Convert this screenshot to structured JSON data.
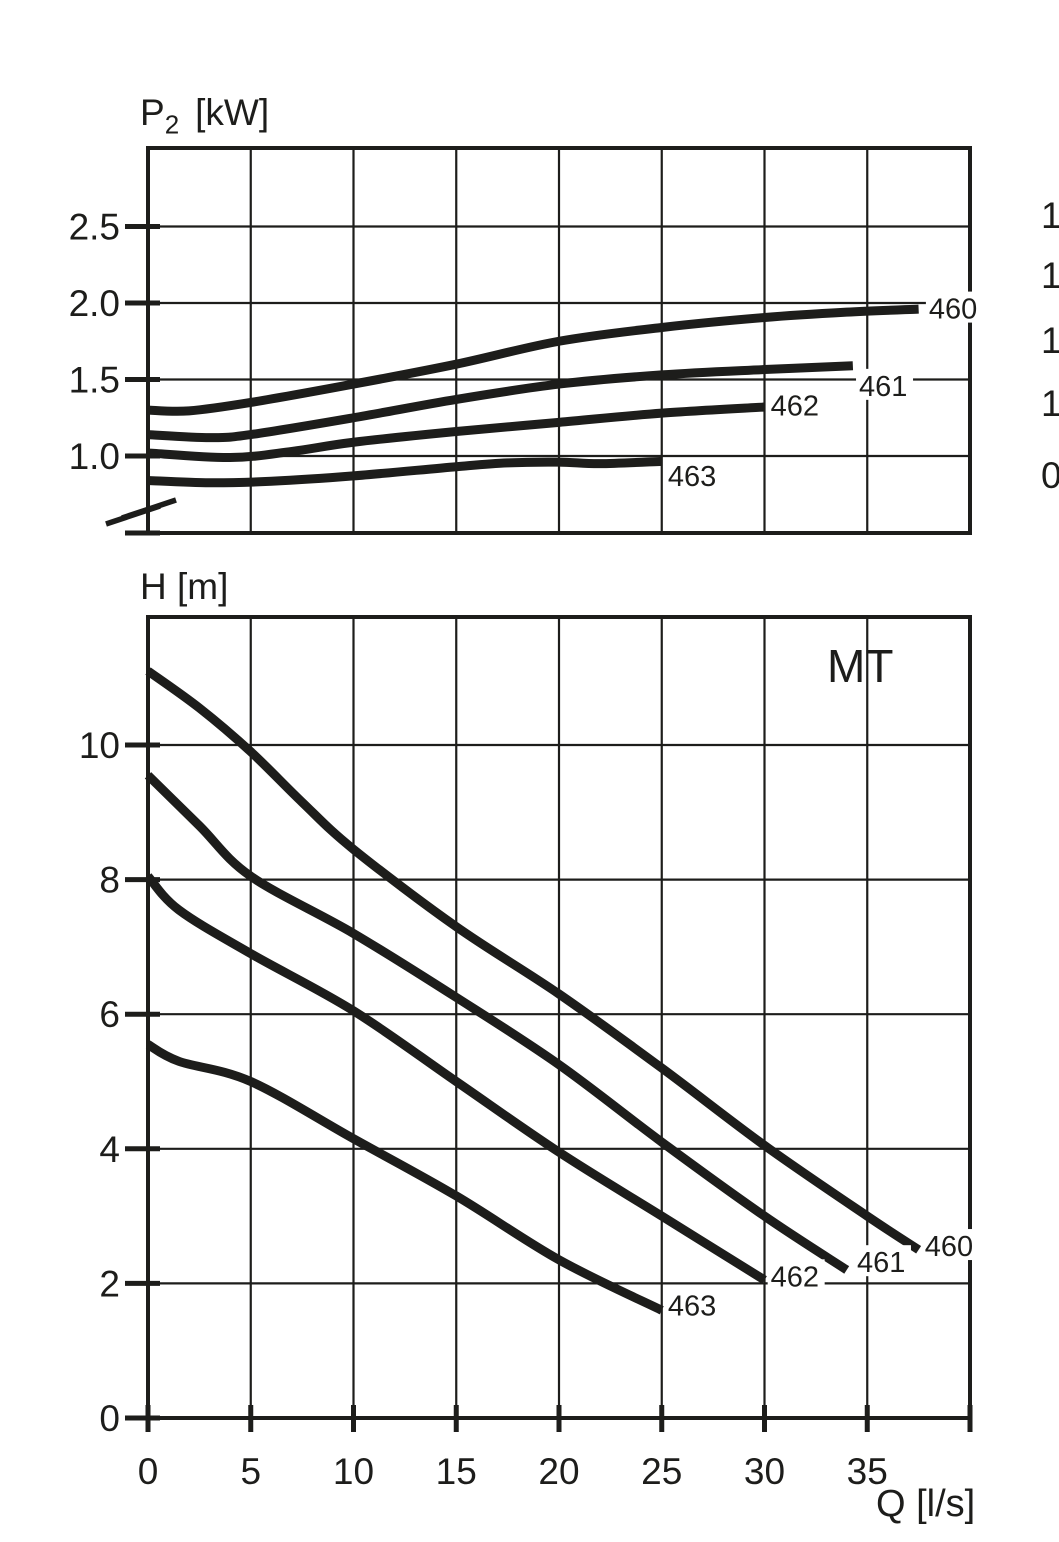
{
  "figure": {
    "background": "#ffffff",
    "ink": "#1d1d1b",
    "family_label": "MT"
  },
  "chart_data": [
    {
      "type": "line",
      "role": "shaft-power-vs-flow",
      "ylabel": "P2 [kW]",
      "ylabel_main": "P",
      "ylabel_sub": "2",
      "ylabel_unit": "[kW]",
      "xlabel": "",
      "x_range": [
        0,
        40
      ],
      "x_gridline_step": 5,
      "y_range_visible": [
        0.5,
        3.0
      ],
      "y_axis_break_below": true,
      "grid": true,
      "y_ticks": [
        1.0,
        1.5,
        2.0,
        2.5
      ],
      "y_tick_labels": [
        "1.0",
        "1.5",
        "2.0",
        "2.5"
      ],
      "x_tick_labels": [],
      "series": [
        {
          "name": "460",
          "label": "460",
          "label_pos": [
            38.0,
            1.97
          ],
          "points": [
            [
              0,
              1.3
            ],
            [
              2,
              1.295
            ],
            [
              5,
              1.35
            ],
            [
              10,
              1.47
            ],
            [
              15,
              1.6
            ],
            [
              20,
              1.75
            ],
            [
              25,
              1.84
            ],
            [
              30,
              1.905
            ],
            [
              34,
              1.94
            ],
            [
              37.5,
              1.96
            ]
          ]
        },
        {
          "name": "461",
          "label": "461",
          "label_pos": [
            34.6,
            1.465
          ],
          "points": [
            [
              0,
              1.14
            ],
            [
              3,
              1.12
            ],
            [
              5,
              1.14
            ],
            [
              10,
              1.25
            ],
            [
              15,
              1.37
            ],
            [
              20,
              1.47
            ],
            [
              25,
              1.53
            ],
            [
              30,
              1.565
            ],
            [
              34.3,
              1.59
            ]
          ]
        },
        {
          "name": "462",
          "label": "462",
          "label_pos": [
            30.3,
            1.335
          ],
          "points": [
            [
              0,
              1.02
            ],
            [
              4,
              0.99
            ],
            [
              7,
              1.03
            ],
            [
              10,
              1.09
            ],
            [
              15,
              1.16
            ],
            [
              20,
              1.22
            ],
            [
              25,
              1.28
            ],
            [
              30,
              1.32
            ]
          ]
        },
        {
          "name": "463",
          "label": "463",
          "label_pos": [
            25.3,
            0.875
          ],
          "points": [
            [
              0,
              0.84
            ],
            [
              3,
              0.825
            ],
            [
              6,
              0.835
            ],
            [
              10,
              0.87
            ],
            [
              15,
              0.93
            ],
            [
              17.5,
              0.955
            ],
            [
              20,
              0.96
            ],
            [
              22,
              0.95
            ],
            [
              25,
              0.965
            ]
          ]
        }
      ]
    },
    {
      "type": "line",
      "role": "head-vs-flow",
      "ylabel": "H [m]",
      "xlabel": "Q [l/s]",
      "annotation": "MT",
      "x_range": [
        0,
        40
      ],
      "x_gridline_step": 5,
      "y_range": [
        0,
        12
      ],
      "grid": true,
      "y_ticks": [
        0,
        2,
        4,
        6,
        8,
        10
      ],
      "y_tick_labels": [
        "0",
        "2",
        "4",
        "6",
        "8",
        "10"
      ],
      "x_ticks": [
        0,
        5,
        10,
        15,
        20,
        25,
        30,
        35
      ],
      "x_tick_labels": [
        "0",
        "5",
        "10",
        "15",
        "20",
        "25",
        "30",
        "35"
      ],
      "series": [
        {
          "name": "460",
          "label": "460",
          "label_pos": [
            37.8,
            2.57
          ],
          "points": [
            [
              0,
              11.1
            ],
            [
              2.5,
              10.55
            ],
            [
              5,
              9.9
            ],
            [
              7.5,
              9.15
            ],
            [
              10,
              8.45
            ],
            [
              15,
              7.3
            ],
            [
              20,
              6.3
            ],
            [
              25,
              5.2
            ],
            [
              30,
              4.05
            ],
            [
              35,
              3.0
            ],
            [
              37.5,
              2.5
            ]
          ]
        },
        {
          "name": "461",
          "label": "461",
          "label_pos": [
            34.5,
            2.33
          ],
          "points": [
            [
              0,
              9.55
            ],
            [
              2.5,
              8.8
            ],
            [
              5,
              8.05
            ],
            [
              10,
              7.2
            ],
            [
              15,
              6.25
            ],
            [
              20,
              5.25
            ],
            [
              25,
              4.1
            ],
            [
              30,
              3.0
            ],
            [
              34,
              2.2
            ]
          ]
        },
        {
          "name": "462",
          "label": "462",
          "label_pos": [
            30.3,
            2.12
          ],
          "points": [
            [
              0,
              8.05
            ],
            [
              1.5,
              7.55
            ],
            [
              5,
              6.9
            ],
            [
              10,
              6.05
            ],
            [
              15,
              5.0
            ],
            [
              20,
              3.95
            ],
            [
              25,
              3.0
            ],
            [
              30,
              2.05
            ]
          ]
        },
        {
          "name": "463",
          "label": "463",
          "label_pos": [
            25.3,
            1.69
          ],
          "points": [
            [
              0,
              5.55
            ],
            [
              1.5,
              5.3
            ],
            [
              5,
              5.0
            ],
            [
              10,
              4.15
            ],
            [
              15,
              3.3
            ],
            [
              20,
              2.35
            ],
            [
              25,
              1.6
            ]
          ]
        }
      ]
    }
  ],
  "cropped_right_edge_labels": [
    {
      "text": "1",
      "y": 215
    },
    {
      "text": "1",
      "y": 275
    },
    {
      "text": "1",
      "y": 340
    },
    {
      "text": "1",
      "y": 403
    },
    {
      "text": "0",
      "y": 475
    }
  ]
}
